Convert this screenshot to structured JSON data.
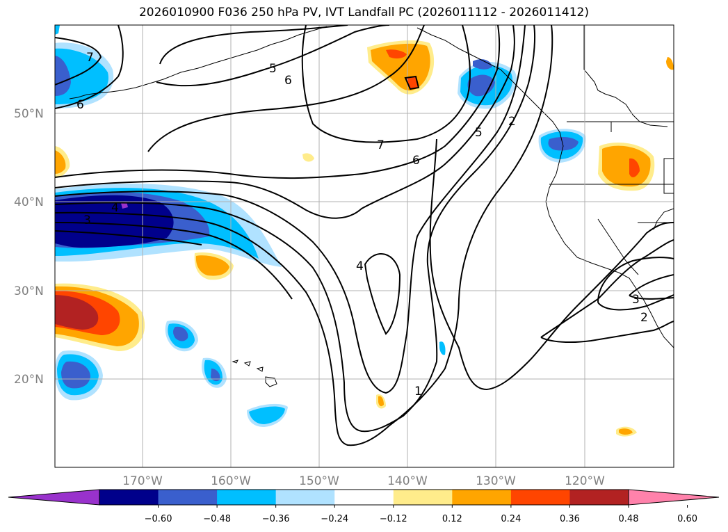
{
  "title": "2026010900 F036 250 hPa PV, IVT Landfall PC (2026011112 - 2026011412)",
  "map": {
    "lat_labels": [
      "50°N",
      "40°N",
      "30°N",
      "20°N"
    ],
    "lon_labels": [
      "170°W",
      "160°W",
      "150°W",
      "140°W",
      "130°W",
      "120°W"
    ],
    "contour_labels": [
      "7",
      "6",
      "5",
      "6",
      "7",
      "6",
      "4",
      "5",
      "2",
      "3",
      "1",
      "2",
      "3",
      "4"
    ]
  },
  "colorbar": {
    "ticks": [
      "−0.60",
      "−0.48",
      "−0.36",
      "−0.24",
      "−0.12",
      "0.12",
      "0.24",
      "0.36",
      "0.48",
      "0.60"
    ],
    "colors": [
      "#9932cc",
      "#00008b",
      "#3a5fcd",
      "#00bfff",
      "#b0e2ff",
      "#ffffff",
      "#ffec8b",
      "#ffa500",
      "#ff4500",
      "#b22222",
      "#ff82ab"
    ]
  },
  "palette": {
    "neg_060": "#00008b",
    "neg_048": "#3a5fcd",
    "neg_036": "#00bfff",
    "neg_024": "#b0e2ff",
    "pos_024": "#ffec8b",
    "pos_036": "#ffa500",
    "pos_048": "#ff4500",
    "pos_060": "#b22222",
    "purple": "#9932cc"
  }
}
